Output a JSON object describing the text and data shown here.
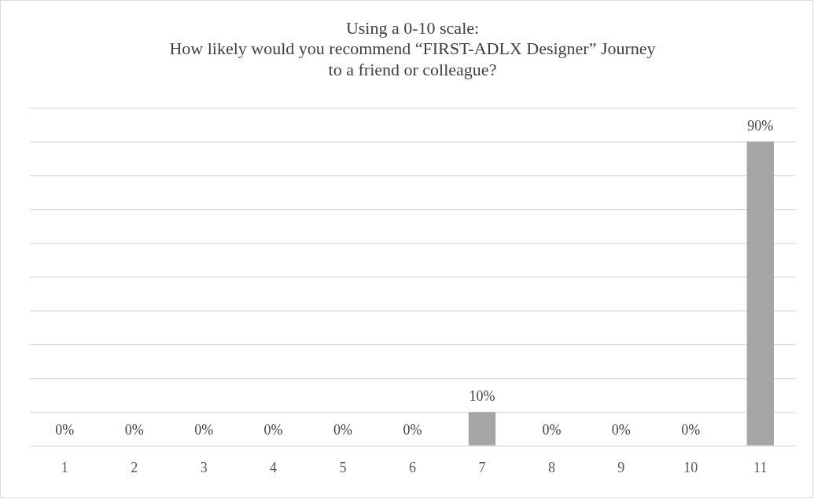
{
  "chart_data": {
    "type": "bar",
    "title": "Using a 0-10 scale:\nHow likely would you recommend “FIRST-ADLX Designer” Journey\nto a friend or colleague?",
    "categories": [
      "1",
      "2",
      "3",
      "4",
      "5",
      "6",
      "7",
      "8",
      "9",
      "10",
      "11"
    ],
    "values": [
      0,
      0,
      0,
      0,
      0,
      0,
      10,
      0,
      0,
      0,
      90
    ],
    "value_labels": [
      "0%",
      "0%",
      "0%",
      "0%",
      "0%",
      "0%",
      "10%",
      "0%",
      "0%",
      "0%",
      "90%"
    ],
    "color": "#a5a5a5",
    "ylim": [
      0,
      100
    ],
    "yticks": [
      {
        "value": 0,
        "label": null
      },
      {
        "value": 10,
        "label": null
      },
      {
        "value": 20,
        "label": null
      },
      {
        "value": 30,
        "label": null
      },
      {
        "value": 40,
        "label": null
      },
      {
        "value": 50,
        "label": null
      },
      {
        "value": 60,
        "label": null
      },
      {
        "value": 70,
        "label": null
      },
      {
        "value": 80,
        "label": null
      },
      {
        "value": 90,
        "label": null
      },
      {
        "value": 100,
        "label": null
      }
    ],
    "grid": "y",
    "legend": false,
    "tick_labels": "x"
  }
}
